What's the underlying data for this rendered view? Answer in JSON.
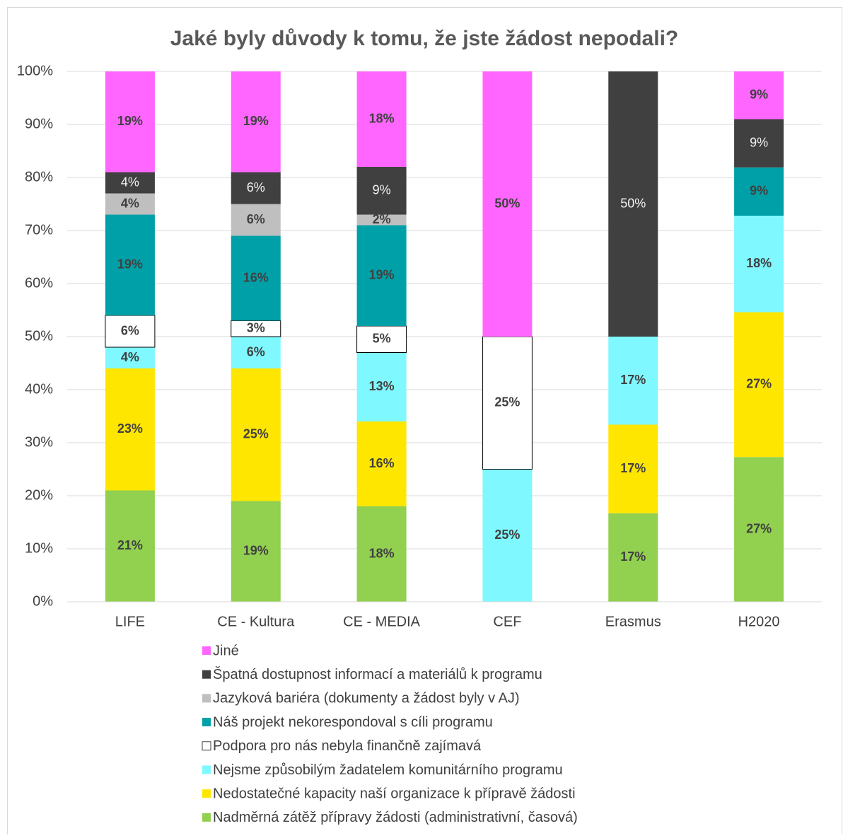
{
  "chart_data": {
    "type": "stacked_bar",
    "title": "Jaké byly důvody k tomu, že jste žádost nepodali?",
    "categories": [
      "LIFE",
      "CE - Kultura",
      "CE - MEDIA",
      "CEF",
      "Erasmus",
      "H2020"
    ],
    "ylim": [
      0,
      100
    ],
    "yticks": [
      {
        "value": 0,
        "label": "0%"
      },
      {
        "value": 10,
        "label": "10%"
      },
      {
        "value": 20,
        "label": "20%"
      },
      {
        "value": 30,
        "label": "30%"
      },
      {
        "value": 40,
        "label": "40%"
      },
      {
        "value": 50,
        "label": "50%"
      },
      {
        "value": 60,
        "label": "60%"
      },
      {
        "value": 70,
        "label": "70%"
      },
      {
        "value": 80,
        "label": "80%"
      },
      {
        "value": 90,
        "label": "90%"
      },
      {
        "value": 100,
        "label": "100%"
      }
    ],
    "grid": true,
    "legend": "bottom",
    "series": [
      {
        "name": "Nadměrná zátěž přípravy žádosti (administrativní, časová)",
        "color": "#92d050",
        "values": [
          21,
          19,
          18,
          0,
          16.7,
          27.3
        ],
        "value_labels": [
          "21%",
          "19%",
          "18%",
          null,
          "17%",
          "27%"
        ]
      },
      {
        "name": "Nedostatečné kapacity naší organizace k přípravě žádosti",
        "color": "#ffe600",
        "values": [
          23,
          25,
          16,
          0,
          16.7,
          27.3
        ],
        "value_labels": [
          "23%",
          "25%",
          "16%",
          null,
          "17%",
          "27%"
        ]
      },
      {
        "name": "Nejsme způsobilým žadatelem komunitárního programu",
        "color": "#7ff8ff",
        "values": [
          4,
          6,
          13,
          25,
          16.6,
          18.2
        ],
        "value_labels": [
          "4%",
          "6%",
          "13%",
          "25%",
          "17%",
          "18%"
        ]
      },
      {
        "name": "Podpora pro nás nebyla finančně zajímavá",
        "color": "#ffffff",
        "values": [
          6,
          3,
          5,
          25,
          0,
          0
        ],
        "value_labels": [
          "6%",
          "3%",
          "5%",
          "25%",
          null,
          null
        ]
      },
      {
        "name": "Náš projekt nekorespondoval s cíli programu",
        "color": "#00a0a8",
        "values": [
          19,
          16,
          19,
          0,
          0,
          9.1
        ],
        "value_labels": [
          "19%",
          "16%",
          "19%",
          null,
          null,
          "9%"
        ]
      },
      {
        "name": "Jazyková bariéra (dokumenty a žádost byly v AJ)",
        "color": "#bfbfbf",
        "values": [
          4,
          6,
          2,
          0,
          0,
          0
        ],
        "value_labels": [
          "4%",
          "6%",
          "2%",
          null,
          null,
          null
        ]
      },
      {
        "name": "Špatná dostupnost informací a materiálů k programu",
        "color": "#404040",
        "values": [
          4,
          6,
          9,
          0,
          50,
          9.1
        ],
        "value_labels": [
          "4%",
          "6%",
          "9%",
          null,
          "50%",
          "9%"
        ]
      },
      {
        "name": "Jiné",
        "color": "#ff66ff",
        "values": [
          19,
          19,
          18,
          50,
          0,
          9
        ],
        "value_labels": [
          "19%",
          "19%",
          "18%",
          "50%",
          null,
          "9%"
        ]
      }
    ]
  }
}
